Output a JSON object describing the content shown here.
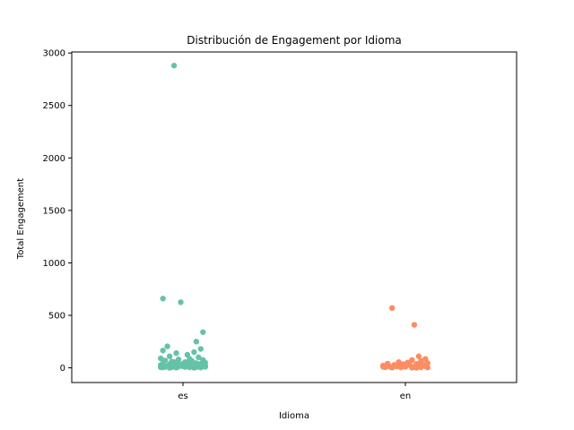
{
  "chart_data": {
    "type": "scatter",
    "title": "Distribución de Engagement por Idioma",
    "xlabel": "Idioma",
    "ylabel": "Total Engagement",
    "categories": [
      "es",
      "en"
    ],
    "ylim": [
      -140,
      3010
    ],
    "yticks": [
      "0",
      "500",
      "1000",
      "1500",
      "2000",
      "2500",
      "3000"
    ],
    "grid": false,
    "series": [
      {
        "category": "es",
        "color": "#66c2a5",
        "points": [
          [
            -0.04,
            2880
          ],
          [
            -0.09,
            660
          ],
          [
            -0.01,
            625
          ],
          [
            0.09,
            340
          ],
          [
            0.06,
            250
          ],
          [
            -0.07,
            205
          ],
          [
            0.08,
            180
          ],
          [
            -0.09,
            165
          ],
          [
            0.05,
            150
          ],
          [
            -0.03,
            140
          ],
          [
            0.02,
            125
          ],
          [
            -0.06,
            110
          ],
          [
            0.07,
            100
          ],
          [
            -0.1,
            90
          ],
          [
            0.03,
            85
          ],
          [
            -0.02,
            80
          ],
          [
            0.09,
            75
          ],
          [
            -0.08,
            70
          ],
          [
            0.04,
            65
          ],
          [
            -0.05,
            60
          ],
          [
            0.01,
            55
          ],
          [
            0.1,
            50
          ],
          [
            -0.03,
            48
          ],
          [
            0.06,
            45
          ],
          [
            -0.09,
            42
          ],
          [
            0.0,
            40
          ],
          [
            0.08,
            38
          ],
          [
            -0.06,
            35
          ],
          [
            0.03,
            32
          ],
          [
            -0.01,
            30
          ],
          [
            0.05,
            28
          ],
          [
            -0.1,
            26
          ],
          [
            0.07,
            24
          ],
          [
            -0.04,
            22
          ],
          [
            0.02,
            20
          ],
          [
            0.09,
            18
          ],
          [
            -0.07,
            16
          ],
          [
            0.04,
            14
          ],
          [
            -0.02,
            12
          ],
          [
            0.1,
            10
          ],
          [
            -0.08,
            9
          ],
          [
            0.01,
            8
          ],
          [
            0.06,
            7
          ],
          [
            -0.05,
            6
          ],
          [
            0.03,
            5
          ],
          [
            -0.09,
            4
          ],
          [
            0.08,
            3
          ],
          [
            -0.03,
            2
          ],
          [
            0.05,
            1
          ],
          [
            -0.06,
            0
          ],
          [
            0.0,
            15
          ],
          [
            0.02,
            35
          ],
          [
            -0.04,
            55
          ],
          [
            0.07,
            12
          ],
          [
            -0.1,
            5
          ],
          [
            0.1,
            20
          ]
        ]
      },
      {
        "category": "en",
        "color": "#fc8d62",
        "points": [
          [
            -0.06,
            570
          ],
          [
            0.04,
            410
          ],
          [
            0.06,
            110
          ],
          [
            0.09,
            85
          ],
          [
            0.03,
            75
          ],
          [
            0.07,
            65
          ],
          [
            -0.03,
            55
          ],
          [
            0.01,
            50
          ],
          [
            0.1,
            45
          ],
          [
            -0.08,
            40
          ],
          [
            0.05,
            38
          ],
          [
            -0.01,
            35
          ],
          [
            0.08,
            30
          ],
          [
            -0.05,
            28
          ],
          [
            0.02,
            25
          ],
          [
            -0.1,
            22
          ],
          [
            0.06,
            20
          ],
          [
            -0.03,
            18
          ],
          [
            0.09,
            15
          ],
          [
            -0.07,
            12
          ],
          [
            0.0,
            10
          ],
          [
            0.04,
            8
          ],
          [
            -0.09,
            6
          ],
          [
            0.07,
            5
          ],
          [
            -0.02,
            4
          ],
          [
            0.1,
            3
          ],
          [
            -0.06,
            2
          ],
          [
            0.03,
            1
          ],
          [
            0.05,
            0
          ],
          [
            -0.04,
            14
          ],
          [
            0.08,
            26
          ],
          [
            -0.1,
            9
          ]
        ]
      }
    ]
  }
}
